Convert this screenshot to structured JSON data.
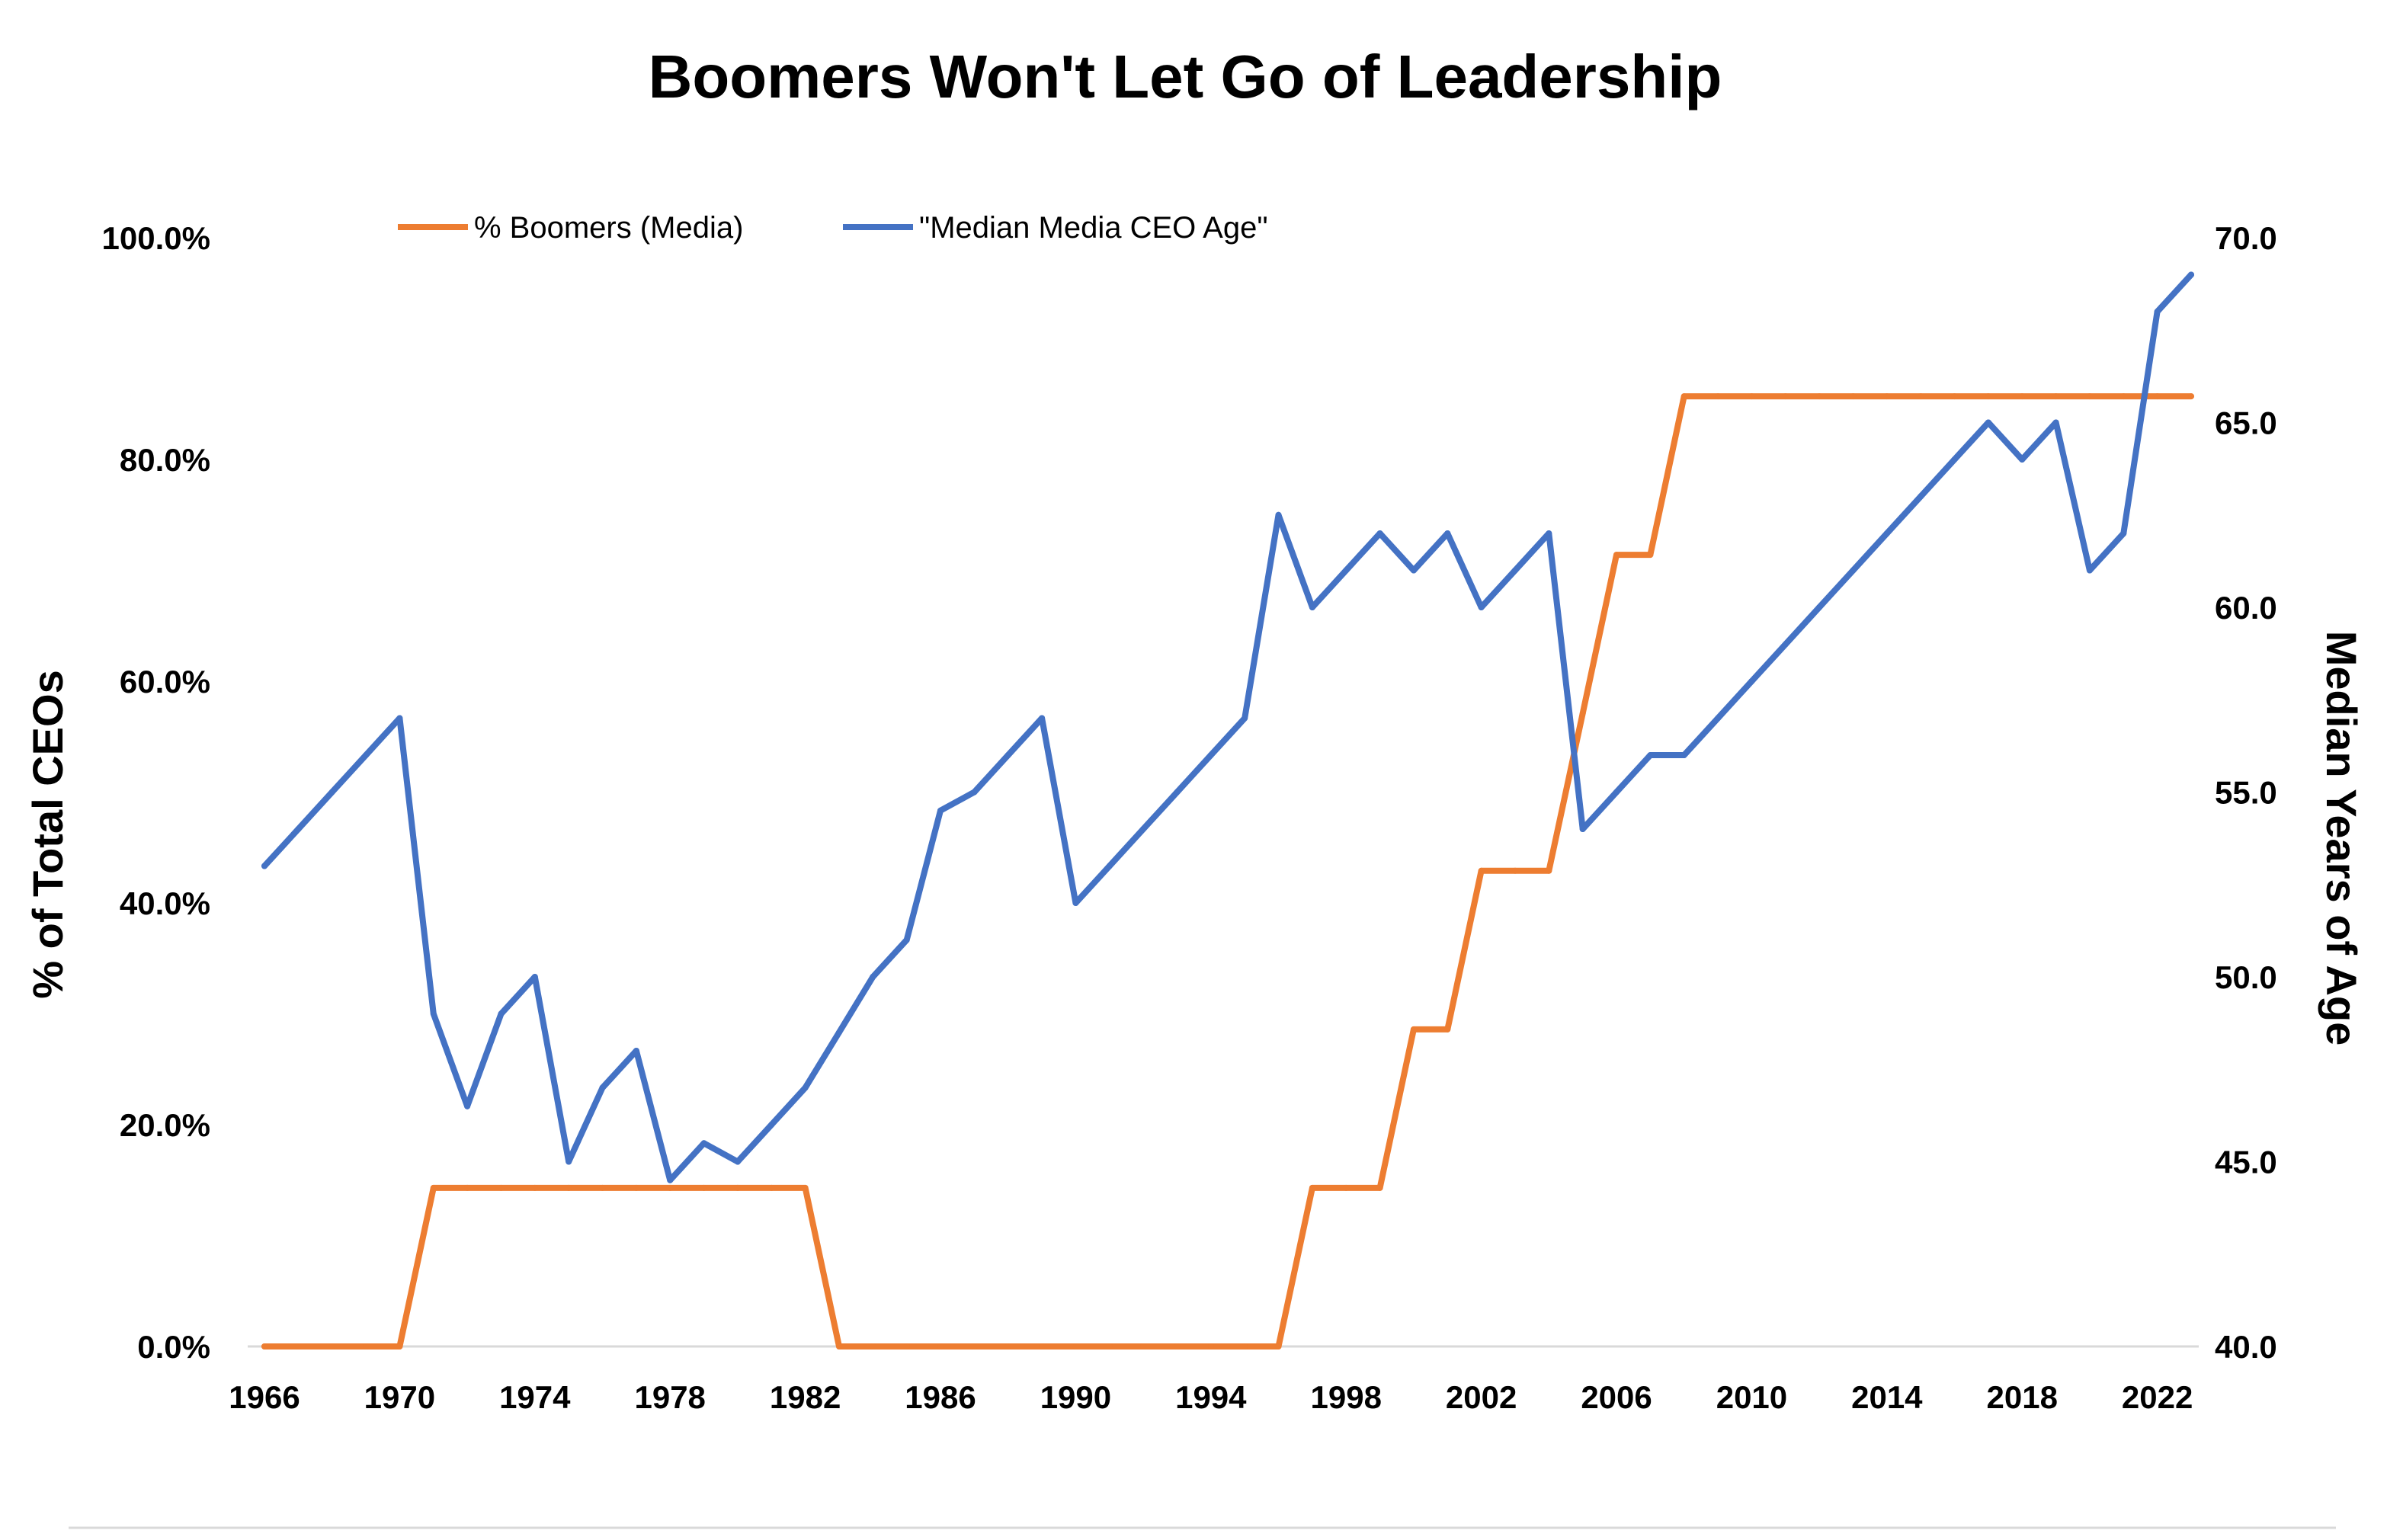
{
  "colors": {
    "boomers": "#ED7D31",
    "age": "#4472C4",
    "axis": "#D9D9D9"
  },
  "chart_data": {
    "type": "line",
    "title": "Boomers Won't Let Go of Leadership",
    "xlabel": "",
    "ylabel": "% of Total CEOs",
    "y2label": "Median Years of Age",
    "xlim": [
      1966,
      2023
    ],
    "ylim": [
      0,
      100
    ],
    "y2lim": [
      40,
      70
    ],
    "x_ticks": [
      "1966",
      "1970",
      "1974",
      "1978",
      "1982",
      "1986",
      "1990",
      "1994",
      "1998",
      "2002",
      "2006",
      "2010",
      "2014",
      "2018",
      "2022"
    ],
    "y_ticks": [
      "0.0%",
      "20.0%",
      "40.0%",
      "60.0%",
      "80.0%",
      "100.0%"
    ],
    "y2_ticks": [
      "40.0",
      "45.0",
      "50.0",
      "55.0",
      "60.0",
      "65.0",
      "70.0"
    ],
    "x": [
      1966,
      1967,
      1968,
      1969,
      1970,
      1971,
      1972,
      1973,
      1974,
      1975,
      1976,
      1977,
      1978,
      1979,
      1980,
      1981,
      1982,
      1983,
      1984,
      1985,
      1986,
      1987,
      1988,
      1989,
      1990,
      1991,
      1992,
      1993,
      1994,
      1995,
      1996,
      1997,
      1998,
      1999,
      2000,
      2001,
      2002,
      2003,
      2004,
      2005,
      2006,
      2007,
      2008,
      2009,
      2010,
      2011,
      2012,
      2013,
      2014,
      2015,
      2016,
      2017,
      2018,
      2019,
      2020,
      2021,
      2022,
      2023
    ],
    "series": [
      {
        "name": "% Boomers (Media)",
        "axis": "left",
        "values": [
          0,
          0,
          0,
          0,
          0,
          14.3,
          14.3,
          14.3,
          14.3,
          14.3,
          14.3,
          14.3,
          14.3,
          14.3,
          14.3,
          14.3,
          14.3,
          0,
          0,
          0,
          0,
          0,
          0,
          0,
          0,
          0,
          0,
          0,
          0,
          0,
          0,
          14.3,
          14.3,
          14.3,
          28.6,
          28.6,
          42.9,
          42.9,
          42.9,
          57.1,
          71.4,
          71.4,
          85.7,
          85.7,
          85.7,
          85.7,
          85.7,
          85.7,
          85.7,
          85.7,
          85.7,
          85.7,
          85.7,
          85.7,
          85.7,
          85.7,
          85.7,
          85.7
        ]
      },
      {
        "name": "\"Median Media CEO Age\"",
        "axis": "right",
        "values": [
          53,
          54,
          55,
          56,
          57,
          49,
          46.5,
          49,
          50,
          45,
          47,
          48,
          44.5,
          45.5,
          45,
          46,
          47,
          48.5,
          50,
          51,
          54.5,
          55,
          56,
          57,
          52,
          53,
          54,
          55,
          56,
          57,
          62.5,
          60,
          61,
          62,
          61,
          62,
          60,
          61,
          62,
          54,
          55,
          56,
          56,
          57,
          58,
          59,
          60,
          61,
          62,
          63,
          64,
          65,
          64,
          65,
          61,
          62,
          68,
          69
        ]
      }
    ]
  }
}
